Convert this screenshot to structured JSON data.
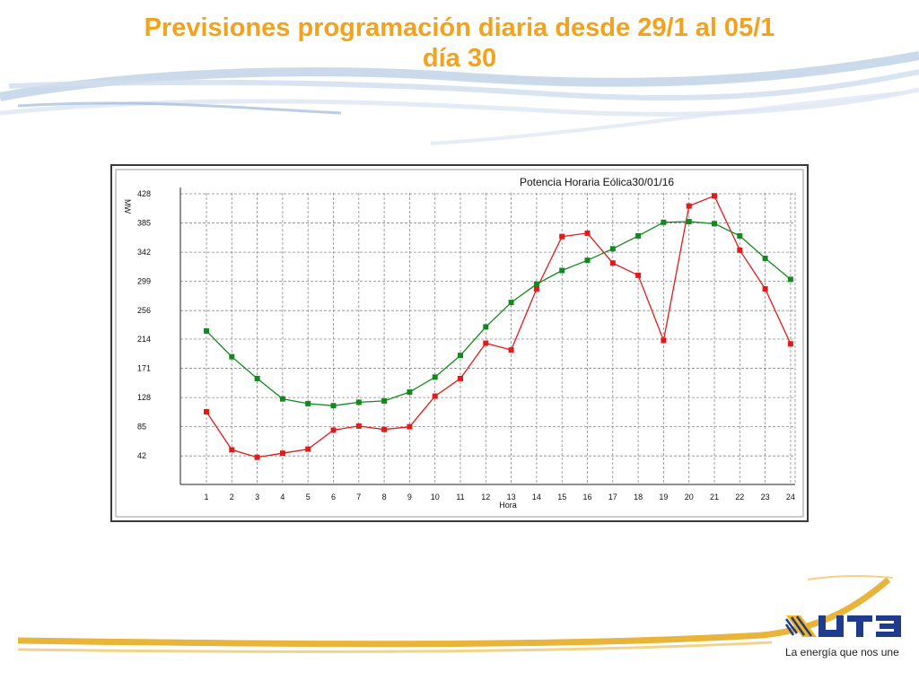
{
  "slide": {
    "title_line1": "Previsiones programación diaria desde 29/1 al 05/1",
    "title_line2": "día 30"
  },
  "brand": {
    "logo_text": "UTE",
    "tagline": "La energía que nos une",
    "title_color": "#F2A21C",
    "logo_blue": "#1F3C8C",
    "logo_yellow": "#F4B41A"
  },
  "chart_data": {
    "type": "line",
    "title": "Potencia Horaria Eólica30/01/16",
    "xlabel": "Hora",
    "ylabel": "MW",
    "categories": [
      "1",
      "2",
      "3",
      "4",
      "5",
      "6",
      "7",
      "8",
      "9",
      "10",
      "11",
      "12",
      "13",
      "14",
      "15",
      "16",
      "17",
      "18",
      "19",
      "20",
      "21",
      "22",
      "23",
      "24"
    ],
    "yticks": [
      "42",
      "85",
      "128",
      "171",
      "214",
      "256",
      "299",
      "342",
      "385",
      "428"
    ],
    "ylim": [
      0,
      428
    ],
    "grid": true,
    "series": [
      {
        "color": "#E01B1B",
        "values": [
          107,
          51,
          40,
          46,
          52,
          80,
          86,
          81,
          85,
          130,
          156,
          208,
          198,
          288,
          365,
          370,
          326,
          308,
          212,
          410,
          425,
          345,
          288,
          207
        ]
      },
      {
        "color": "#12891F",
        "values": [
          226,
          188,
          156,
          126,
          119,
          116,
          121,
          123,
          136,
          158,
          190,
          232,
          268,
          295,
          315,
          330,
          347,
          366,
          386,
          387,
          384,
          366,
          333,
          302
        ]
      }
    ]
  }
}
